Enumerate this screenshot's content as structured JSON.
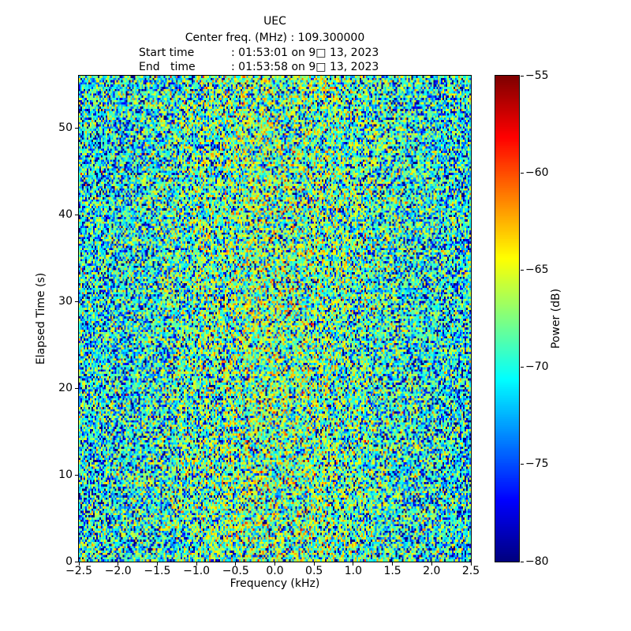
{
  "chart_data": {
    "type": "heatmap",
    "title": "UEC",
    "header": {
      "center_freq_line": "Center freq. (MHz) : 109.300000",
      "start_label": "Start time",
      "start_value": ": 01:53:01 on 9□ 13, 2023",
      "end_label": "End   time",
      "end_value": ": 01:53:58 on 9□ 13, 2023"
    },
    "xlabel": "Frequency (kHz)",
    "ylabel": "Elapsed Time (s)",
    "xlim": [
      -2.5,
      2.5
    ],
    "ylim": [
      0,
      56
    ],
    "xticks": [
      -2.5,
      -2.0,
      -1.5,
      -1.0,
      -0.5,
      0.0,
      0.5,
      1.0,
      1.5,
      2.0,
      2.5
    ],
    "xtick_labels": [
      "−2.5",
      "−2.0",
      "−1.5",
      "−1.0",
      "−0.5",
      "0.0",
      "0.5",
      "1.0",
      "1.5",
      "2.0",
      "2.5"
    ],
    "yticks": [
      0,
      10,
      20,
      30,
      40,
      50
    ],
    "ytick_labels": [
      "0",
      "10",
      "20",
      "30",
      "40",
      "50"
    ],
    "grid": false,
    "colorbar": {
      "label": "Power (dB)",
      "colormap": "jet",
      "vmin": -80,
      "vmax": -55,
      "ticks": [
        -55,
        -60,
        -65,
        -70,
        -75,
        -80
      ],
      "tick_labels": [
        "−55",
        "−60",
        "−65",
        "−70",
        "−75",
        "−80"
      ]
    },
    "data_model": {
      "kind": "random-noise-spectrogram",
      "description": "Uniform noise field; power in dB = base(f) + 10*log10(-ln(U)), U~Uniform(0,1); brighter (greener) toward center frequency, bluer toward band edges; no visible carriers.",
      "seed": 20230913,
      "cols": 250,
      "rows": 220,
      "base_edge_db": -69.4,
      "base_center_db": -66.3,
      "gaussian_width_khz": 1.6,
      "clip_db": [
        -80,
        -55
      ]
    }
  }
}
